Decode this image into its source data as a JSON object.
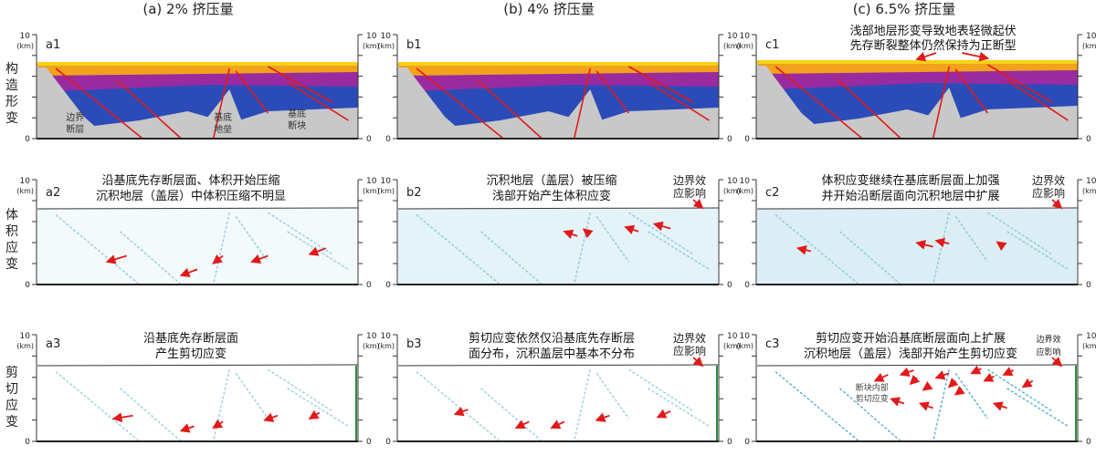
{
  "columns": [
    {
      "id": "a",
      "title": "(a) 2% 挤压量"
    },
    {
      "id": "b",
      "title": "(b) 4% 挤压量"
    },
    {
      "id": "c",
      "title": "(c) 6.5% 挤压量"
    }
  ],
  "row_labels": [
    {
      "id": "structure",
      "chars": [
        "构",
        "造",
        "形",
        "变"
      ]
    },
    {
      "id": "volume",
      "chars": [
        "体",
        "积",
        "应",
        "变"
      ]
    },
    {
      "id": "shear",
      "chars": [
        "剪",
        "切",
        "应",
        "变"
      ]
    }
  ],
  "axis": {
    "top": "10",
    "unit": "(km)",
    "bottom": "0"
  },
  "panels": [
    {
      "id": "a1",
      "label": "a1",
      "annotations": [
        "",
        ""
      ],
      "inner_labels": [
        [
          "边界",
          "断层"
        ],
        [
          "基底",
          "地垒"
        ],
        [
          "基底",
          "断块"
        ]
      ],
      "boundary_note": [
        "",
        ""
      ],
      "inner_note": [
        "",
        ""
      ]
    },
    {
      "id": "b1",
      "label": "b1",
      "annotations": [
        "",
        ""
      ],
      "inner_labels": [],
      "boundary_note": [
        "",
        ""
      ],
      "inner_note": [
        "",
        ""
      ]
    },
    {
      "id": "c1",
      "label": "c1",
      "annotations": [
        "浅部地层形变导致地表轻微起伏",
        "先存断裂整体仍然保持为正断型"
      ],
      "inner_labels": [],
      "boundary_note": [
        "",
        ""
      ],
      "inner_note": [
        "",
        ""
      ]
    },
    {
      "id": "a2",
      "label": "a2",
      "annotations": [
        "沿基底先存断层面、体积开始压缩",
        "沉积地层（盖层）中体积压缩不明显"
      ],
      "inner_labels": [],
      "boundary_note": [
        "",
        ""
      ],
      "inner_note": [
        "",
        ""
      ]
    },
    {
      "id": "b2",
      "label": "b2",
      "annotations": [
        "沉积地层（盖层）被压缩",
        "浅部开始产生体积应变"
      ],
      "inner_labels": [],
      "boundary_note": [
        "边界效",
        "应影响"
      ],
      "inner_note": [
        "",
        ""
      ]
    },
    {
      "id": "c2",
      "label": "c2",
      "annotations": [
        "体积应变继续在基底断层面上加强",
        "并开始沿断层面向沉积地层中扩展"
      ],
      "inner_labels": [],
      "boundary_note": [
        "边界效",
        "应影响"
      ],
      "inner_note": [
        "",
        ""
      ]
    },
    {
      "id": "a3",
      "label": "a3",
      "annotations": [
        "沿基底先存断层面",
        "产生剪切应变"
      ],
      "inner_labels": [],
      "boundary_note": [
        "",
        ""
      ],
      "inner_note": [
        "",
        ""
      ]
    },
    {
      "id": "b3",
      "label": "b3",
      "annotations": [
        "剪切应变依然仅沿基底先存断层",
        "面分布，沉积盖层中基本不分布"
      ],
      "inner_labels": [],
      "boundary_note": [
        "边界效",
        "应影响"
      ],
      "inner_note": [
        "",
        ""
      ]
    },
    {
      "id": "c3",
      "label": "c3",
      "annotations": [
        "剪切应变开始沿基底断层面向上扩展",
        "沉积地层（盖层）浅部开始产生剪切应变"
      ],
      "inner_labels": [],
      "boundary_note": [
        "边界效",
        "应影响"
      ],
      "inner_note": [
        "断块内部",
        "剪切应变"
      ]
    }
  ],
  "colors": {
    "basement": "#c8c8c8",
    "blue": "#2b4bb8",
    "purple": "#9a2aa0",
    "orange": "#f2a21c",
    "yellow": "#f6d21a",
    "fault": "#e01a1a",
    "arrow": "#e01a1a",
    "strain": "#4aa6c8"
  }
}
